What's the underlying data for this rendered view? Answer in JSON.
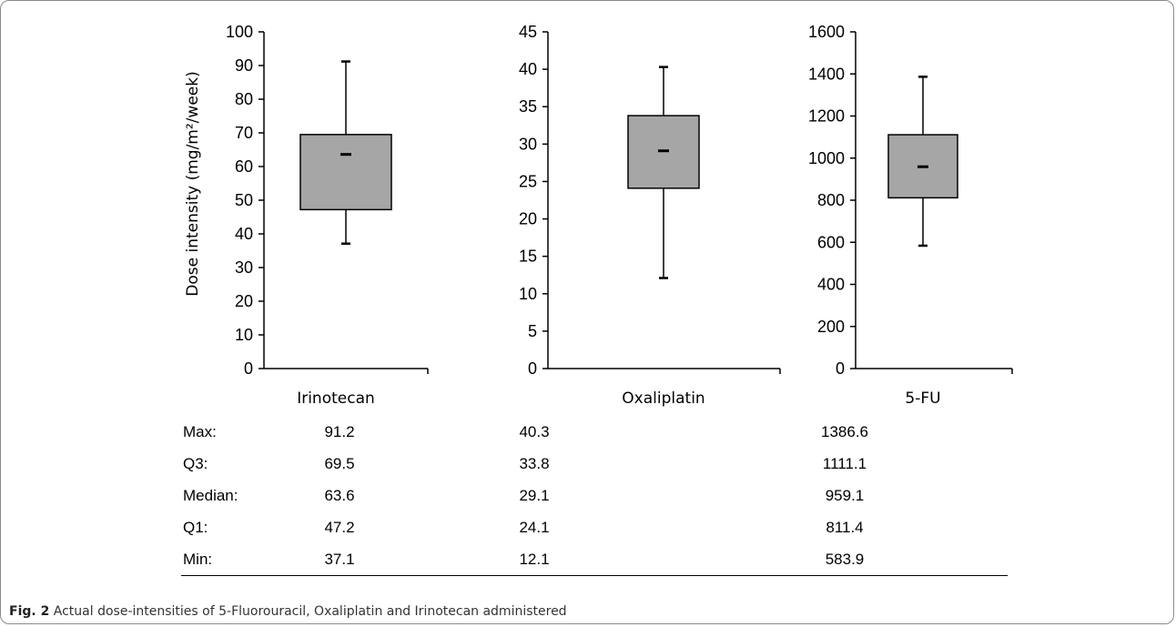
{
  "ylabel": "Dose intensity (mg/m²/week)",
  "chart_data": [
    {
      "type": "box",
      "category": "Irinotecan",
      "ylim": [
        0,
        100
      ],
      "yticks": [
        0,
        10,
        20,
        30,
        40,
        50,
        60,
        70,
        80,
        90,
        100
      ],
      "max": 91.2,
      "q3": 69.5,
      "median": 63.6,
      "q1": 47.2,
      "min": 37.1
    },
    {
      "type": "box",
      "category": "Oxaliplatin",
      "ylim": [
        0,
        45
      ],
      "yticks": [
        0,
        5,
        10,
        15,
        20,
        25,
        30,
        35,
        40,
        45
      ],
      "max": 40.3,
      "q3": 33.8,
      "median": 29.1,
      "q1": 24.1,
      "min": 12.1
    },
    {
      "type": "box",
      "category": "5-FU",
      "ylim": [
        0,
        1600
      ],
      "yticks": [
        0,
        200,
        400,
        600,
        800,
        1000,
        1200,
        1400,
        1600
      ],
      "max": 1386.6,
      "q3": 1111.1,
      "median": 959.1,
      "q1": 811.4,
      "min": 583.9
    }
  ],
  "table": {
    "rows": [
      {
        "label": "Max:",
        "values": [
          "91.2",
          "40.3",
          "1386.6"
        ]
      },
      {
        "label": "Q3:",
        "values": [
          "69.5",
          "33.8",
          "1111.1"
        ]
      },
      {
        "label": "Median:",
        "values": [
          "63.6",
          "29.1",
          "959.1"
        ]
      },
      {
        "label": "Q1:",
        "values": [
          "47.2",
          "24.1",
          "811.4"
        ]
      },
      {
        "label": "Min:",
        "values": [
          "37.1",
          "12.1",
          "583.9"
        ]
      }
    ]
  },
  "caption": {
    "prefix": "Fig. 2",
    "text": "Actual dose-intensities of 5-Fluorouracil, Oxaliplatin and Irinotecan administered"
  },
  "colors": {
    "box_fill": "#a6a6a6",
    "line": "#000000"
  }
}
